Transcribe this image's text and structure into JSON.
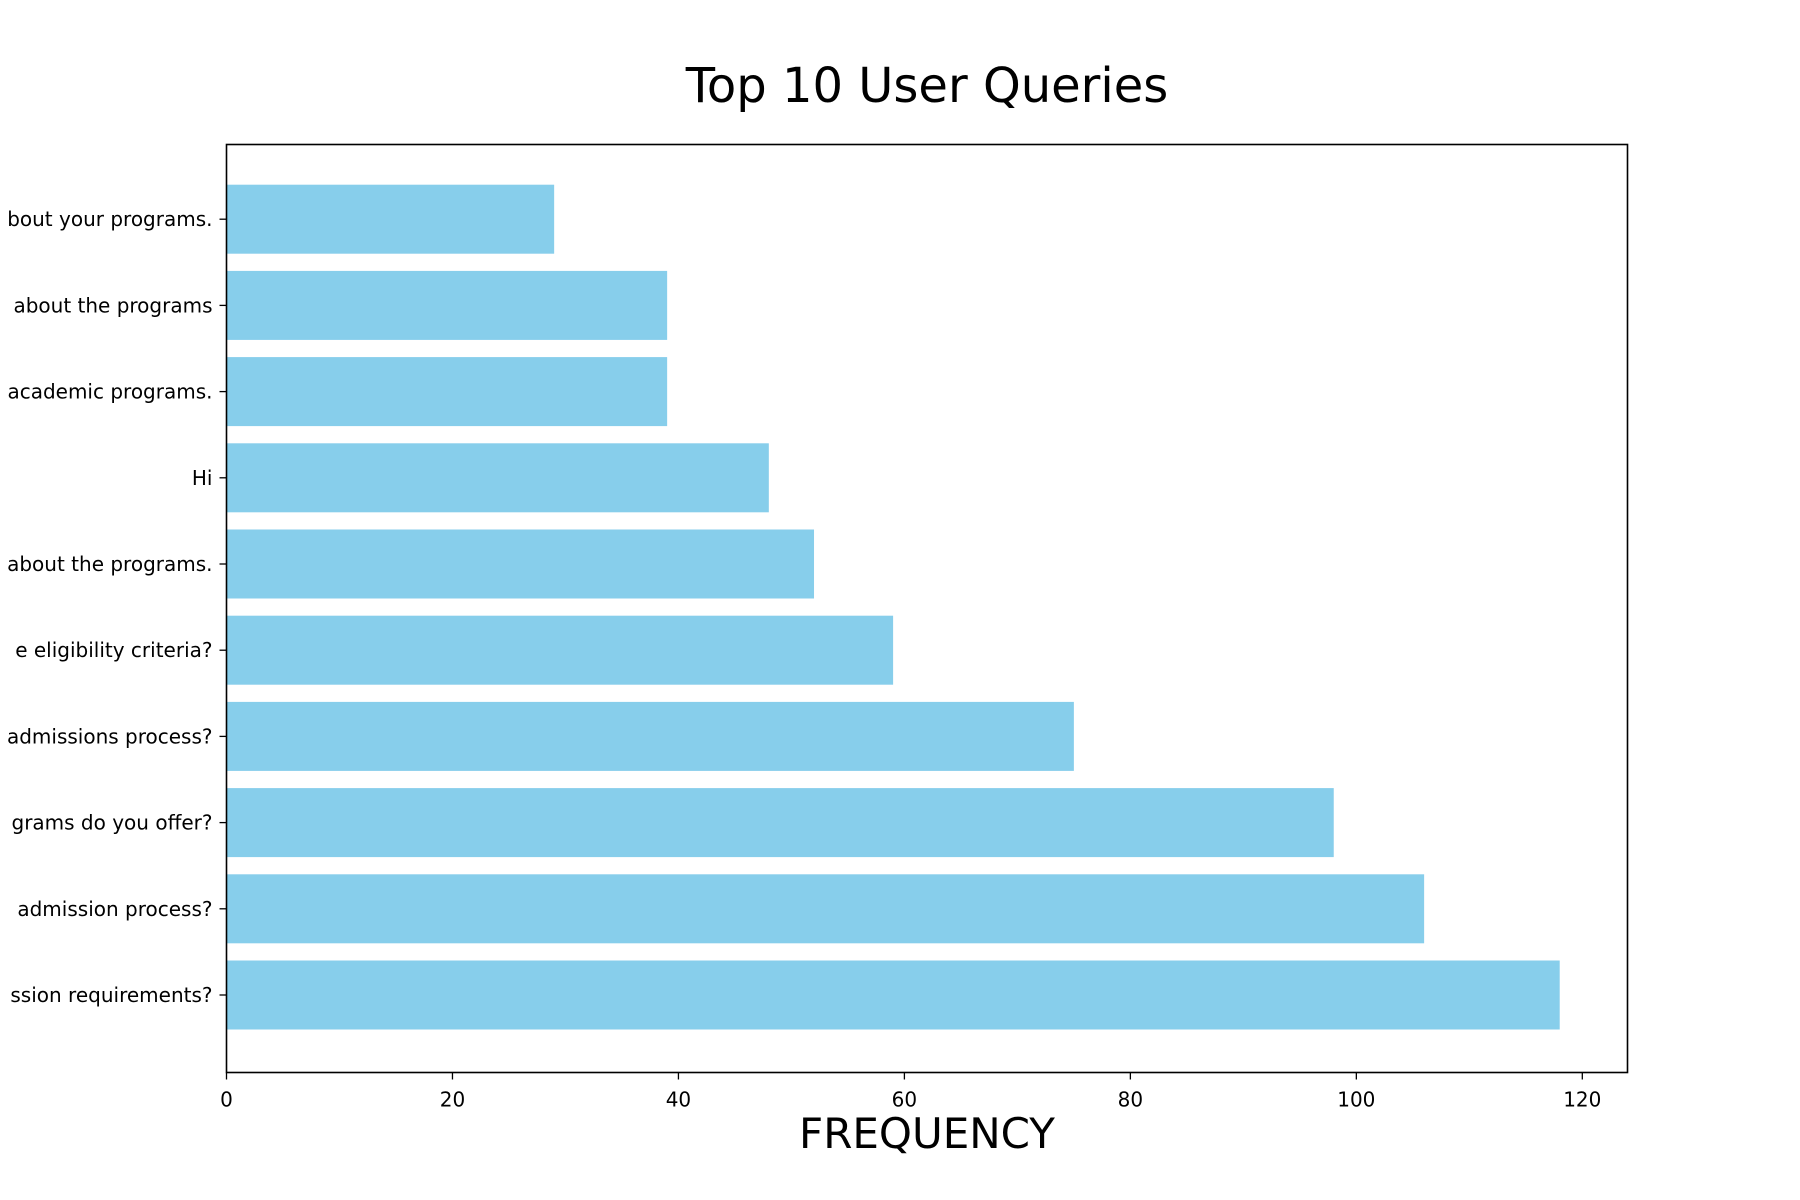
{
  "chart_data": {
    "type": "bar",
    "orientation": "horizontal",
    "title": "Top 10 User Queries",
    "xlabel": "FREQUENCY",
    "ylabel": "",
    "xlim": [
      0,
      124
    ],
    "xticks": [
      0,
      20,
      40,
      60,
      80,
      100,
      120
    ],
    "categories": [
      "What are the admission requirements?",
      "What is the admission process?",
      "What programs do you offer?",
      "What is the admissions process?",
      "What are the eligibility criteria?",
      "Tell me about the programs.",
      "Hi",
      "Tell me about your academic programs.",
      "Tell me about the programs",
      "Tell me about your programs."
    ],
    "display_categories": [
      "ssion requirements?",
      " admission process?",
      "grams do you offer?",
      "admissions process?",
      "e eligibility criteria?",
      "about the programs.",
      "Hi",
      "academic programs.",
      " about the programs",
      "bout your programs."
    ],
    "values": [
      118,
      106,
      98,
      75,
      59,
      52,
      48,
      39,
      39,
      29
    ],
    "bar_color": "#87CEEB",
    "grid": false,
    "legend": "none"
  }
}
